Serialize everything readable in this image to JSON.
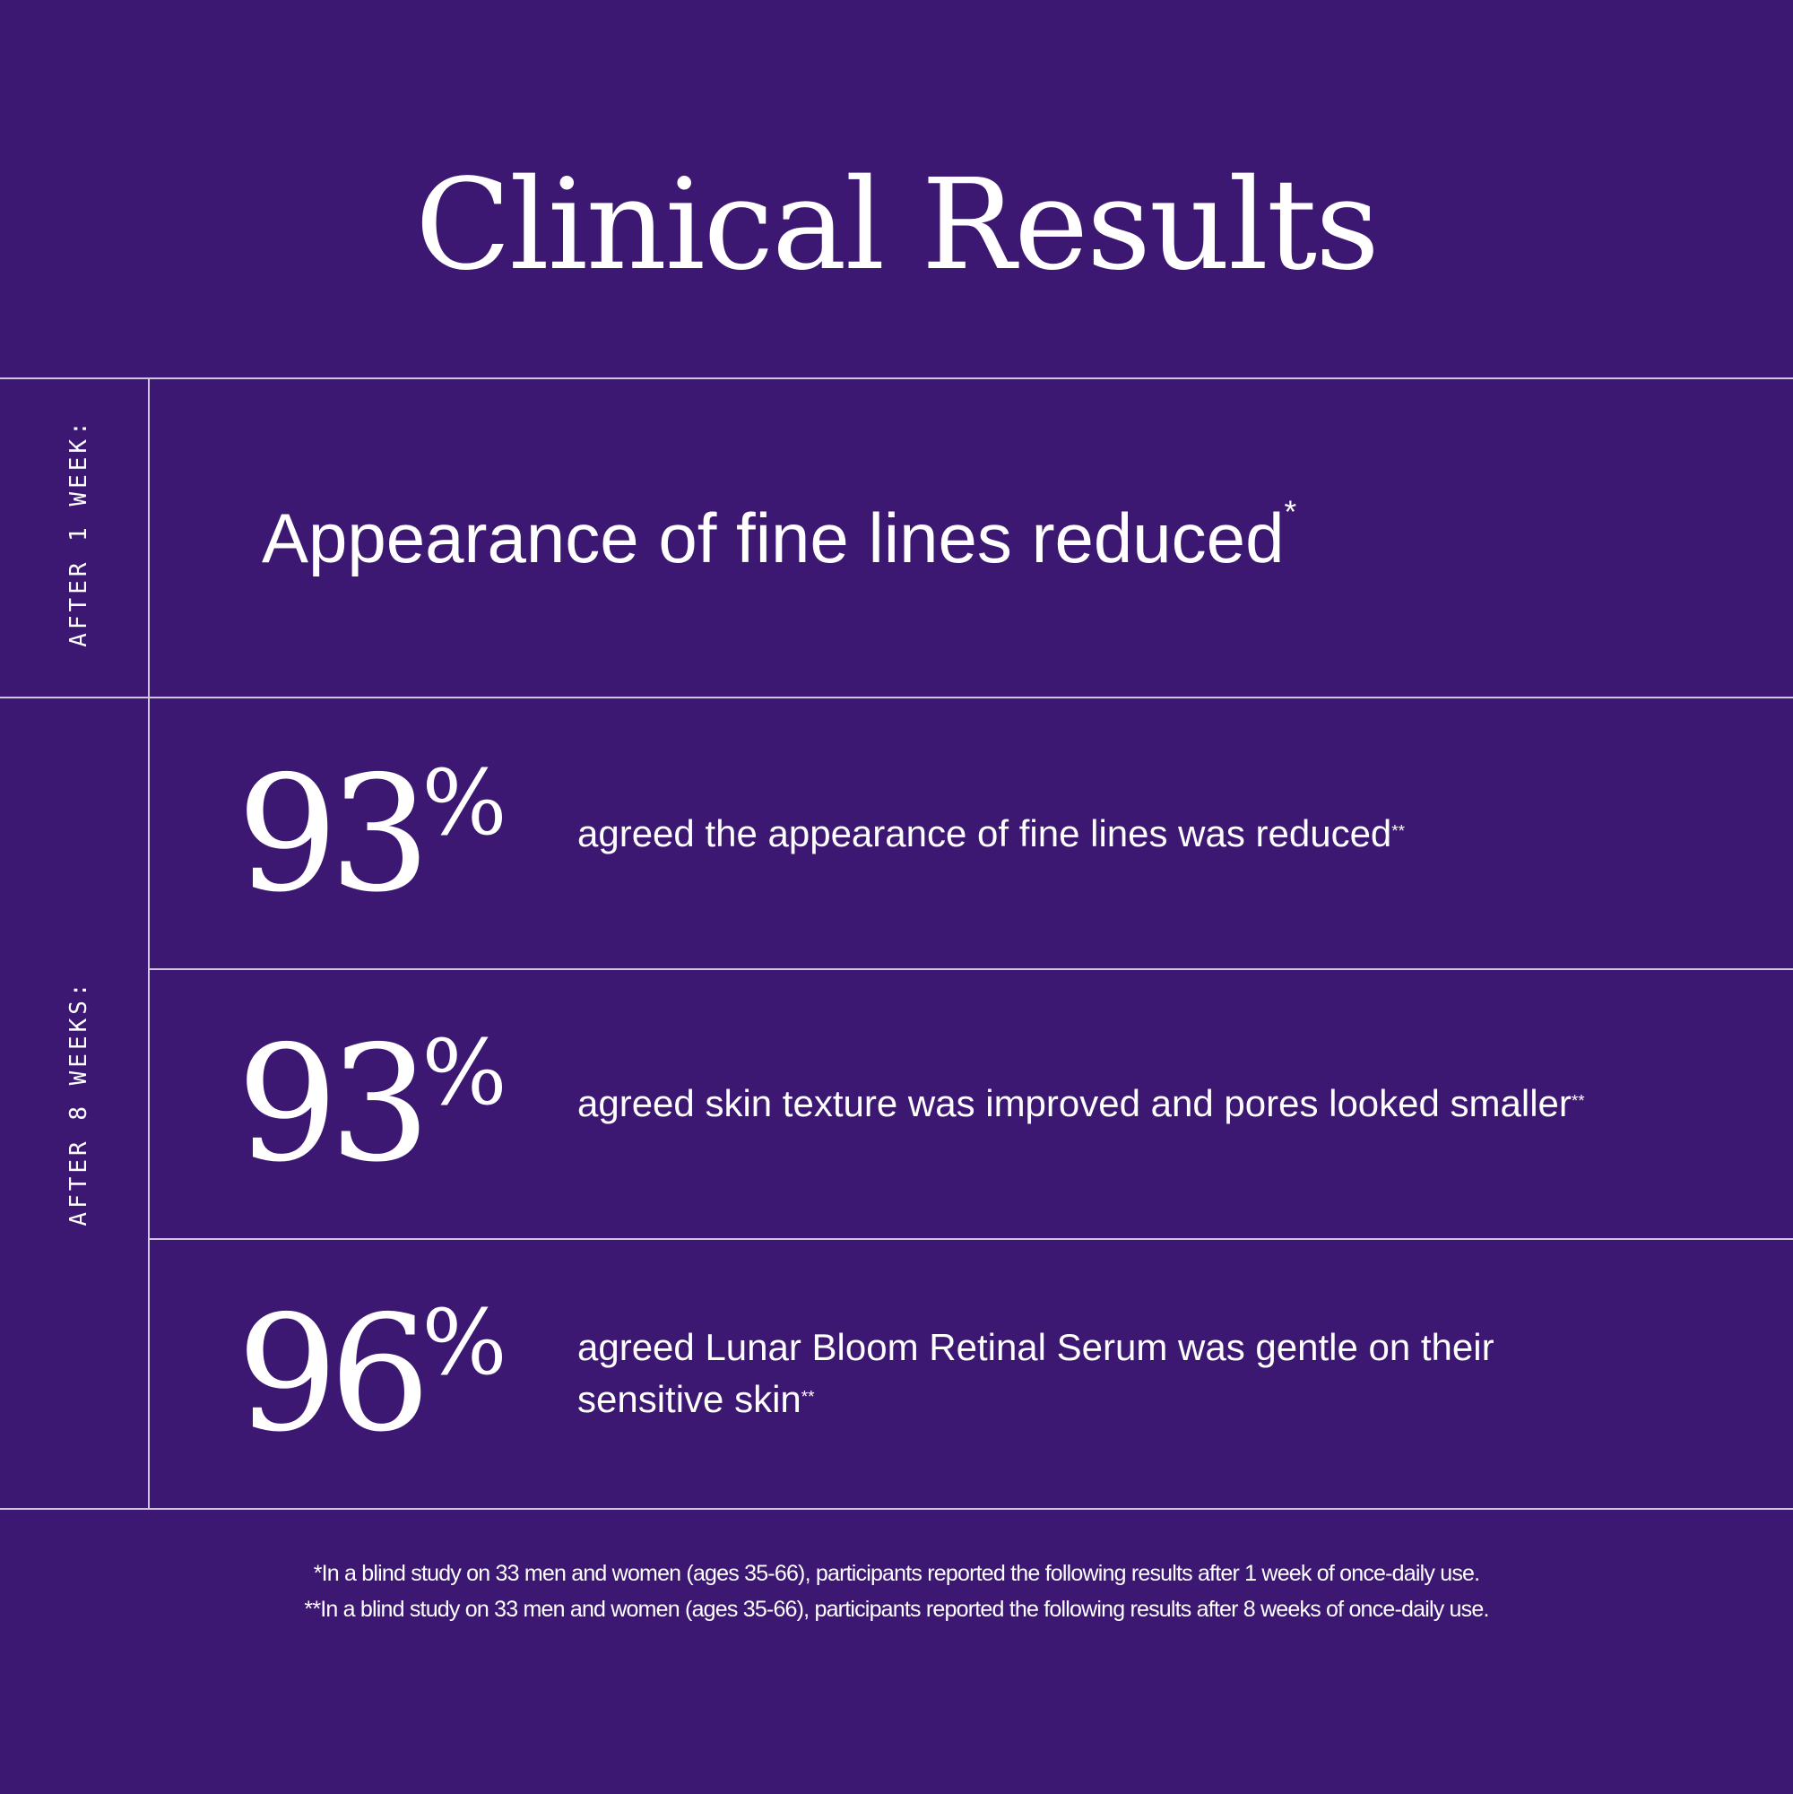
{
  "title": "Clinical Results",
  "sections": [
    {
      "label": "AFTER 1 WEEK:",
      "headline": "Appearance of fine lines reduced",
      "mark": "*"
    },
    {
      "label": "AFTER 8 WEEKS:",
      "stats": [
        {
          "value": "93",
          "unit": "%",
          "text": "agreed the appearance of fine lines was reduced",
          "mark": "**"
        },
        {
          "value": "93",
          "unit": "%",
          "text": "agreed skin texture was improved and pores looked smaller",
          "mark": "**"
        },
        {
          "value": "96",
          "unit": "%",
          "text": "agreed Lunar Bloom Retinal Serum was gentle on their sensitive skin",
          "mark": "**"
        }
      ]
    }
  ],
  "footnotes": [
    "*In a blind study on 33 men and women (ages 35-66), participants reported the following results after 1 week of once-daily use.",
    "**In a blind study on 33 men and women (ages 35-66), participants reported the following results after 8 weeks of once-daily use."
  ],
  "colors": {
    "background": "#3c1872",
    "text": "#ffffff",
    "divider": "#cfc6e0"
  }
}
